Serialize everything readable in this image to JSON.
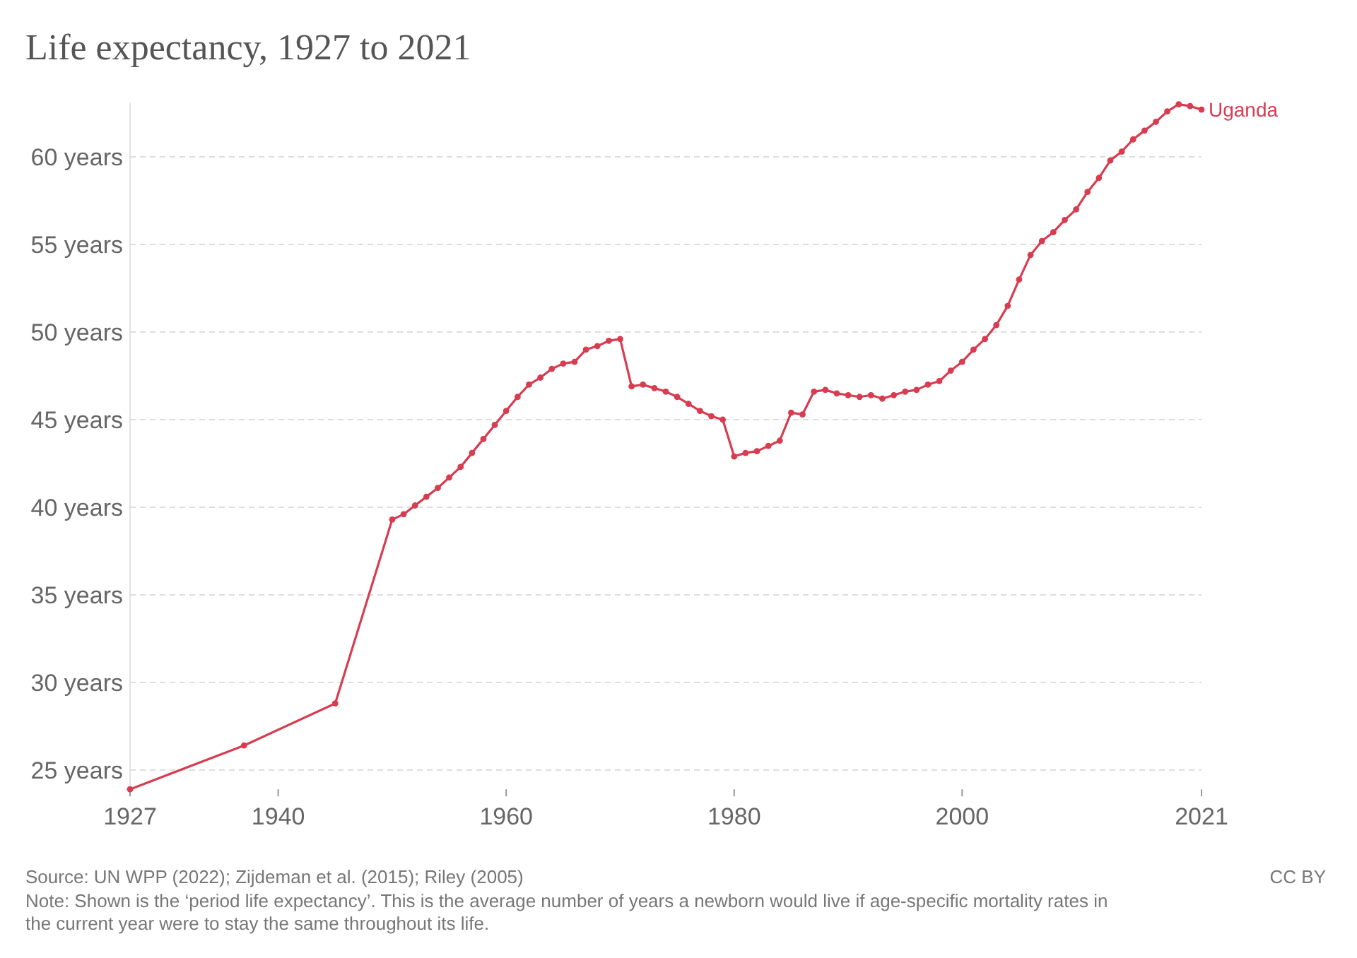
{
  "chart_data": {
    "type": "line",
    "title": "Life expectancy, 1927 to 2021",
    "x": [
      1927,
      1937,
      1945,
      1950,
      1951,
      1952,
      1953,
      1954,
      1955,
      1956,
      1957,
      1958,
      1959,
      1960,
      1961,
      1962,
      1963,
      1964,
      1965,
      1966,
      1967,
      1968,
      1969,
      1970,
      1971,
      1972,
      1973,
      1974,
      1975,
      1976,
      1977,
      1978,
      1979,
      1980,
      1981,
      1982,
      1983,
      1984,
      1985,
      1986,
      1987,
      1988,
      1989,
      1990,
      1991,
      1992,
      1993,
      1994,
      1995,
      1996,
      1997,
      1998,
      1999,
      2000,
      2001,
      2002,
      2003,
      2004,
      2005,
      2006,
      2007,
      2008,
      2009,
      2010,
      2011,
      2012,
      2013,
      2014,
      2015,
      2016,
      2017,
      2018,
      2019,
      2020,
      2021
    ],
    "series": [
      {
        "name": "Uganda",
        "color": "#d73c50",
        "values": [
          23.9,
          26.4,
          28.8,
          39.3,
          39.6,
          40.1,
          40.6,
          41.1,
          41.7,
          42.3,
          43.1,
          43.9,
          44.7,
          45.5,
          46.3,
          47.0,
          47.4,
          47.9,
          48.2,
          48.3,
          49.0,
          49.2,
          49.5,
          49.6,
          46.9,
          47.0,
          46.8,
          46.6,
          46.3,
          45.9,
          45.5,
          45.2,
          45.0,
          42.9,
          43.1,
          43.2,
          43.5,
          43.8,
          45.4,
          45.3,
          46.6,
          46.7,
          46.5,
          46.4,
          46.3,
          46.4,
          46.2,
          46.4,
          46.6,
          46.7,
          47.0,
          47.2,
          47.8,
          48.3,
          49.0,
          49.6,
          50.4,
          51.5,
          53.0,
          54.4,
          55.2,
          55.7,
          56.4,
          57.0,
          58.0,
          58.8,
          59.8,
          60.3,
          61.0,
          61.5,
          62.0,
          62.6,
          63.0,
          62.9,
          62.7
        ]
      }
    ],
    "xlim": [
      1927,
      2021
    ],
    "xticks": [
      1927,
      1940,
      1960,
      1980,
      2000,
      2021
    ],
    "ylim": [
      23.9,
      63.1
    ],
    "yticks": [
      {
        "value": 25,
        "label": "25 years"
      },
      {
        "value": 30,
        "label": "30 years"
      },
      {
        "value": 35,
        "label": "35 years"
      },
      {
        "value": 40,
        "label": "40 years"
      },
      {
        "value": 45,
        "label": "45 years"
      },
      {
        "value": 50,
        "label": "50 years"
      },
      {
        "value": 55,
        "label": "55 years"
      },
      {
        "value": 60,
        "label": "60 years"
      }
    ],
    "grid": "y",
    "marker": "circle",
    "line_style": "solid",
    "annotations": [
      "Source: UN WPP (2022); Zijdeman et al. (2015); Riley (2005)",
      "CC BY",
      "Note: Shown is the ‘period life expectancy’. This is the average number of years a newborn would live if age-specific mortality rates in the current year were to stay the same throughout its life."
    ]
  }
}
